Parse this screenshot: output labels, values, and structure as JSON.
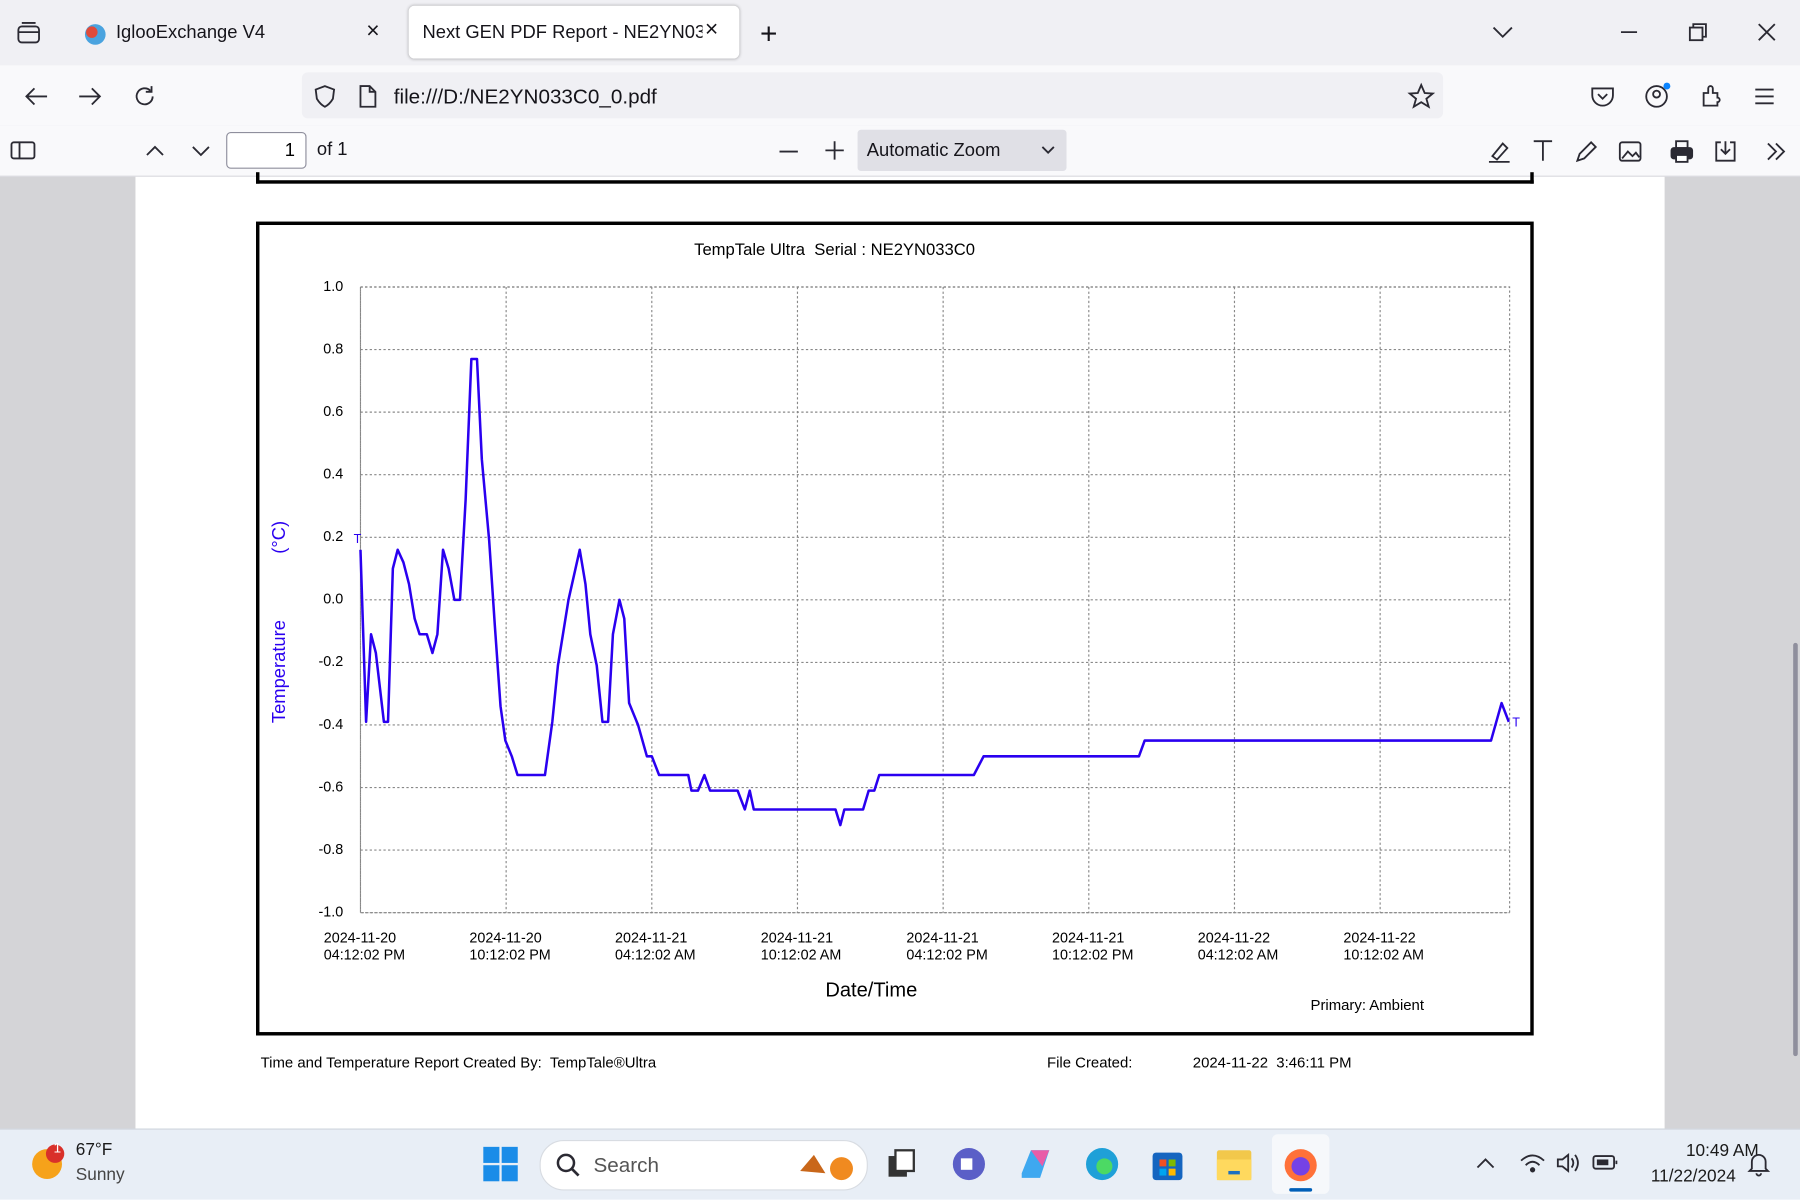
{
  "browser": {
    "tabs": [
      "IglooExchange V4",
      "Next GEN PDF Report - NE2YN033C0"
    ],
    "url": "file:///D:/NE2YN033C0_0.pdf"
  },
  "pdf_toolbar": {
    "page": "1",
    "page_count": "of 1",
    "zoom": "Automatic Zoom"
  },
  "chart_data": {
    "type": "line",
    "title": "TempTale Ultra  Serial : NE2YN033C0",
    "x_label": "Date/Time",
    "y_label": "Temperature",
    "y_unit": "(°C)",
    "annotations": [
      "T",
      "T",
      "Primary: Ambient"
    ],
    "color": "#2a00f0",
    "grid": true,
    "x": [
      "2024-11-20 16:12:02",
      "2024-11-20 16:26:02",
      "2024-11-20 16:38:02",
      "2024-11-20 16:50:02",
      "2024-11-20 17:10:02",
      "2024-11-20 17:20:02",
      "2024-11-20 17:32:02",
      "2024-11-20 17:44:02",
      "2024-11-20 17:58:02",
      "2024-11-20 18:12:02",
      "2024-11-20 18:26:02",
      "2024-11-20 18:38:02",
      "2024-11-20 18:56:02",
      "2024-11-20 19:10:02",
      "2024-11-20 19:22:02",
      "2024-11-20 19:36:02",
      "2024-11-20 19:50:02",
      "2024-11-20 20:04:02",
      "2024-11-20 20:18:02",
      "2024-11-20 20:32:02",
      "2024-11-20 20:46:02",
      "2024-11-20 21:00:02",
      "2024-11-20 21:12:02",
      "2024-11-20 21:30:02",
      "2024-11-20 21:44:02",
      "2024-11-20 21:58:02",
      "2024-11-20 22:10:02",
      "2024-11-20 22:26:02",
      "2024-11-20 22:40:02",
      "2024-11-20 23:48:02",
      "2024-11-21 00:06:02",
      "2024-11-21 00:20:02",
      "2024-11-21 00:46:02",
      "2024-11-21 01:14:02",
      "2024-11-21 01:28:02",
      "2024-11-21 01:40:02",
      "2024-11-21 01:56:02",
      "2024-11-21 02:10:02",
      "2024-11-21 02:24:02",
      "2024-11-21 02:36:02",
      "2024-11-21 02:52:02",
      "2024-11-21 03:04:02",
      "2024-11-21 03:16:02",
      "2024-11-21 03:38:02",
      "2024-11-21 04:00:02",
      "2024-11-21 04:12:02",
      "2024-11-21 04:30:02",
      "2024-11-21 05:42:02",
      "2024-11-21 05:50:02",
      "2024-11-21 06:06:02",
      "2024-11-21 06:22:02",
      "2024-11-21 06:36:02",
      "2024-11-21 07:44:02",
      "2024-11-21 08:02:02",
      "2024-11-21 08:14:02",
      "2024-11-21 08:24:02",
      "2024-11-21 11:46:02",
      "2024-11-21 11:58:02",
      "2024-11-21 12:08:02",
      "2024-11-21 12:54:02",
      "2024-11-21 13:08:02",
      "2024-11-21 13:22:02",
      "2024-11-21 13:34:02",
      "2024-11-21 17:28:02",
      "2024-11-21 17:52:02",
      "2024-11-22 00:16:02",
      "2024-11-22 00:30:02",
      "2024-11-22 14:46:02",
      "2024-11-22 15:12:02",
      "2024-11-22 15:30:02"
    ],
    "values": [
      0.16,
      -0.39,
      -0.11,
      -0.17,
      -0.39,
      -0.39,
      0.1,
      0.16,
      0.12,
      0.05,
      -0.06,
      -0.11,
      -0.11,
      -0.17,
      -0.11,
      0.16,
      0.1,
      0.0,
      0.0,
      0.32,
      0.77,
      0.77,
      0.45,
      0.19,
      -0.08,
      -0.34,
      -0.45,
      -0.5,
      -0.56,
      -0.56,
      -0.39,
      -0.21,
      0.0,
      0.16,
      0.05,
      -0.11,
      -0.21,
      -0.39,
      -0.39,
      -0.11,
      0.0,
      -0.06,
      -0.33,
      -0.4,
      -0.5,
      -0.5,
      -0.56,
      -0.56,
      -0.61,
      -0.61,
      -0.56,
      -0.61,
      -0.61,
      -0.67,
      -0.61,
      -0.67,
      -0.67,
      -0.72,
      -0.67,
      -0.67,
      -0.61,
      -0.61,
      -0.56,
      -0.56,
      -0.5,
      -0.5,
      -0.45,
      -0.45,
      -0.33,
      -0.39
    ],
    "xlim": [
      "2024-11-20 16:12:02",
      "2024-11-22 15:32:02"
    ],
    "xticks": [
      {
        "value": "2024-11-20 16:12:02",
        "label": "2024-11-20\n04:12:02 PM"
      },
      {
        "value": "2024-11-20 22:12:02",
        "label": "2024-11-20\n10:12:02 PM"
      },
      {
        "value": "2024-11-21 04:12:02",
        "label": "2024-11-21\n04:12:02 AM"
      },
      {
        "value": "2024-11-21 10:12:02",
        "label": "2024-11-21\n10:12:02 AM"
      },
      {
        "value": "2024-11-21 16:12:02",
        "label": "2024-11-21\n04:12:02 PM"
      },
      {
        "value": "2024-11-21 22:12:02",
        "label": "2024-11-21\n10:12:02 PM"
      },
      {
        "value": "2024-11-22 04:12:02",
        "label": "2024-11-22\n04:12:02 AM"
      },
      {
        "value": "2024-11-22 10:12:02",
        "label": "2024-11-22\n10:12:02 AM"
      }
    ],
    "ylim": [
      -1,
      1
    ],
    "yticks": [
      {
        "value": 1,
        "label": "1.0"
      },
      0.8,
      0.6,
      0.4,
      0.2,
      {
        "value": 0,
        "label": "0.0"
      },
      -0.2,
      -0.4,
      -0.6,
      -0.8,
      {
        "value": -1,
        "label": "-1.0"
      }
    ]
  },
  "footer": {
    "created_by": "Time and Temperature Report Created By:  TempTale®Ultra",
    "file_created_label": "File Created:",
    "file_created": "2024-11-22  3:46:11 PM"
  },
  "taskbar": {
    "badge": "1",
    "temperature": "67°F",
    "weather": "Sunny",
    "search": "Search",
    "time": "10:49 AM",
    "date": "11/22/2024"
  }
}
